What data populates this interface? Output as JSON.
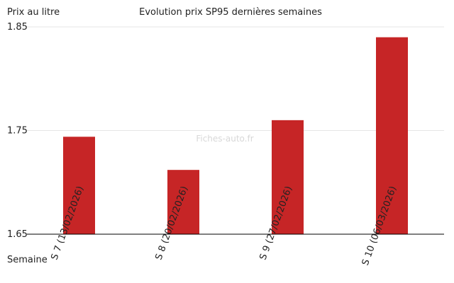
{
  "chart_data": {
    "type": "bar",
    "title": "Evolution prix SP95 dernières semaines",
    "ylabel": "Prix au litre",
    "xlabel": "Semaine",
    "watermark": "Fiches-auto.fr",
    "categories": [
      "S 7 (13/02/2026)",
      "S 8 (20/02/2026)",
      "S 9 (27/02/2026)",
      "S 10 (06/03/2026)"
    ],
    "values": [
      1.744,
      1.712,
      1.76,
      1.84
    ],
    "ylim": [
      1.65,
      1.85
    ],
    "yticks": [
      "1.65",
      "1.75",
      "1.85"
    ],
    "grid": true,
    "bar_color": "#c62526",
    "grid_color": "#e6e6e6",
    "axis_color": "#000000"
  }
}
